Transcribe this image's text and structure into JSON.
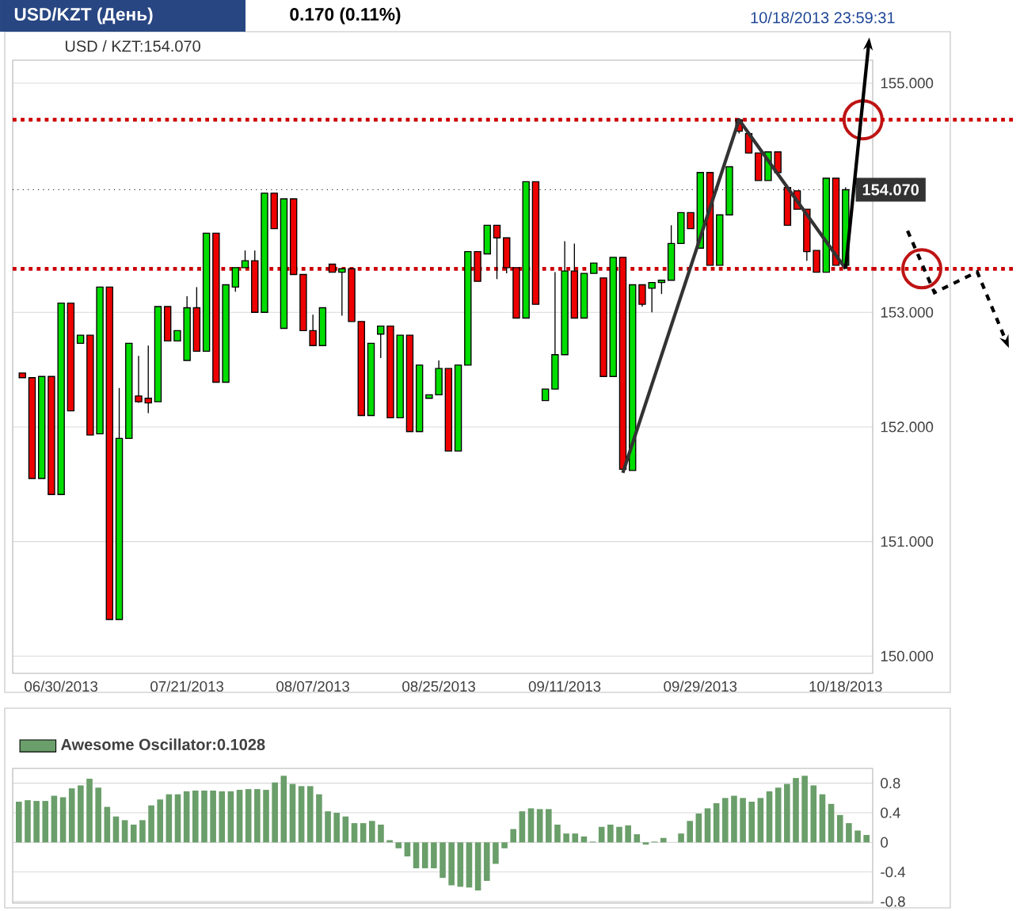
{
  "chart_data": [
    {
      "type": "candlestick",
      "title": "USD/KZT (День)",
      "subtitle": "0.170 (0.11%)",
      "annotations": [
        "10/18/2013 23:59:31",
        "USD / KZT:154.070"
      ],
      "categories": [
        null,
        null,
        null,
        null,
        "06/30/2013",
        null,
        null,
        null,
        null,
        null,
        null,
        null,
        null,
        null,
        null,
        null,
        null,
        "07/21/2013",
        null,
        null,
        null,
        null,
        null,
        null,
        null,
        null,
        null,
        null,
        null,
        null,
        "08/07/2013",
        null,
        null,
        null,
        null,
        null,
        null,
        null,
        null,
        null,
        null,
        null,
        null,
        "08/25/2013",
        null,
        null,
        null,
        null,
        null,
        null,
        null,
        null,
        null,
        null,
        null,
        null,
        "09/11/2013",
        null,
        null,
        null,
        null,
        null,
        null,
        null,
        null,
        null,
        null,
        null,
        null,
        null,
        "09/29/2013",
        null,
        null,
        null,
        null,
        null,
        null,
        null,
        null,
        null,
        null,
        null,
        null,
        null,
        null,
        "10/18/2013"
      ],
      "ohlc": [
        [
          152.47,
          152.47,
          152.43,
          152.43
        ],
        [
          152.43,
          152.43,
          151.55,
          151.55
        ],
        [
          151.55,
          152.44,
          151.55,
          152.44
        ],
        [
          152.44,
          152.44,
          151.41,
          151.41
        ],
        [
          151.41,
          153.08,
          151.41,
          153.08
        ],
        [
          153.08,
          153.08,
          152.14,
          152.14
        ],
        [
          152.73,
          152.8,
          152.73,
          152.8
        ],
        [
          152.8,
          152.8,
          151.93,
          151.93
        ],
        [
          151.94,
          153.22,
          151.94,
          153.22
        ],
        [
          153.22,
          153.22,
          150.32,
          150.32
        ],
        [
          150.32,
          152.34,
          150.32,
          151.9
        ],
        [
          151.9,
          152.73,
          151.9,
          152.73
        ],
        [
          152.27,
          152.62,
          152.21,
          152.22
        ],
        [
          152.25,
          152.71,
          152.12,
          152.21
        ],
        [
          152.22,
          153.05,
          152.22,
          153.05
        ],
        [
          153.05,
          153.05,
          152.75,
          152.75
        ],
        [
          152.75,
          152.84,
          152.75,
          152.84
        ],
        [
          152.58,
          153.14,
          152.58,
          153.04
        ],
        [
          153.04,
          153.22,
          152.66,
          152.66
        ],
        [
          152.66,
          153.69,
          152.66,
          153.69
        ],
        [
          153.69,
          153.69,
          152.39,
          152.39
        ],
        [
          152.39,
          153.24,
          152.39,
          153.24
        ],
        [
          153.22,
          153.39,
          153.18,
          153.39
        ],
        [
          153.39,
          153.54,
          153.39,
          153.45
        ],
        [
          153.45,
          153.54,
          153.0,
          153.0
        ],
        [
          153.0,
          154.04,
          153.0,
          154.04
        ],
        [
          154.04,
          154.04,
          153.73,
          153.73
        ],
        [
          152.86,
          153.99,
          152.86,
          153.99
        ],
        [
          153.99,
          153.99,
          153.33,
          153.33
        ],
        [
          153.33,
          153.33,
          152.84,
          152.84
        ],
        [
          152.84,
          152.98,
          152.71,
          152.71
        ],
        [
          152.71,
          153.04,
          152.71,
          153.04
        ],
        [
          153.42,
          153.42,
          153.35,
          153.35
        ],
        [
          153.35,
          153.38,
          152.97,
          153.38
        ],
        [
          153.38,
          153.38,
          152.92,
          152.92
        ],
        [
          152.92,
          152.92,
          152.1,
          152.1
        ],
        [
          152.1,
          152.73,
          152.1,
          152.73
        ],
        [
          152.81,
          152.88,
          152.6,
          152.88
        ],
        [
          152.88,
          152.88,
          152.08,
          152.08
        ],
        [
          152.08,
          152.8,
          152.08,
          152.8
        ],
        [
          152.8,
          152.8,
          151.96,
          151.96
        ],
        [
          151.96,
          152.54,
          151.96,
          152.54
        ],
        [
          152.25,
          152.28,
          152.25,
          152.28
        ],
        [
          152.28,
          152.58,
          152.28,
          152.51
        ],
        [
          152.51,
          152.51,
          151.79,
          151.79
        ],
        [
          151.79,
          152.54,
          151.79,
          152.54
        ],
        [
          152.54,
          153.53,
          152.54,
          153.53
        ],
        [
          153.53,
          153.53,
          153.27,
          153.27
        ],
        [
          153.51,
          153.76,
          153.51,
          153.76
        ],
        [
          153.76,
          153.76,
          153.29,
          153.65
        ],
        [
          153.65,
          153.65,
          153.34,
          153.39
        ],
        [
          153.39,
          153.39,
          152.95,
          152.95
        ],
        [
          152.95,
          154.14,
          152.95,
          154.14
        ],
        [
          154.14,
          154.14,
          153.07,
          153.07
        ],
        [
          152.23,
          152.33,
          152.23,
          152.33
        ],
        [
          152.33,
          153.35,
          152.33,
          152.63
        ],
        [
          152.63,
          153.62,
          152.63,
          153.36
        ],
        [
          153.36,
          153.6,
          152.95,
          152.95
        ],
        [
          152.95,
          153.34,
          152.95,
          153.34
        ],
        [
          153.34,
          153.43,
          153.34,
          153.43
        ],
        [
          153.3,
          153.3,
          152.44,
          152.44
        ],
        [
          152.44,
          153.48,
          152.44,
          153.48
        ],
        [
          153.48,
          153.48,
          151.63,
          151.63
        ],
        [
          151.62,
          153.24,
          151.62,
          153.24
        ],
        [
          153.24,
          153.24,
          153.05,
          153.07
        ],
        [
          153.21,
          153.26,
          153.0,
          153.26
        ],
        [
          153.26,
          153.28,
          153.16,
          153.28
        ],
        [
          153.28,
          153.76,
          153.28,
          153.6
        ],
        [
          153.6,
          153.87,
          153.6,
          153.87
        ],
        [
          153.87,
          153.87,
          153.73,
          153.73
        ],
        [
          153.56,
          154.22,
          153.56,
          154.22
        ],
        [
          154.22,
          154.22,
          153.41,
          153.41
        ],
        [
          153.41,
          153.85,
          153.41,
          153.85
        ],
        [
          153.85,
          154.27,
          153.85,
          154.27
        ],
        [
          154.68,
          154.68,
          154.56,
          154.58
        ],
        [
          154.56,
          154.56,
          154.39,
          154.39
        ],
        [
          154.39,
          154.39,
          154.15,
          154.15
        ],
        [
          154.15,
          154.4,
          154.15,
          154.4
        ],
        [
          154.4,
          154.4,
          154.22,
          154.22
        ],
        [
          154.09,
          154.09,
          153.76,
          153.76
        ],
        [
          154.06,
          154.06,
          153.9,
          153.9
        ],
        [
          153.9,
          153.9,
          153.45,
          153.53
        ],
        [
          153.54,
          153.54,
          153.35,
          153.35
        ],
        [
          153.35,
          154.17,
          153.35,
          154.17
        ],
        [
          154.17,
          154.17,
          153.41,
          153.41
        ],
        [
          153.41,
          154.09,
          153.41,
          154.07
        ]
      ],
      "colors": [
        "#ee0000",
        "#ee0000",
        "#00dd00",
        "#ee0000",
        "#00dd00",
        "#ee0000",
        "#00dd00",
        "#ee0000",
        "#00dd00",
        "#ee0000",
        "#00dd00",
        "#00dd00",
        "#ee0000",
        "#ee0000",
        "#00dd00",
        "#ee0000",
        "#00dd00",
        "#00dd00",
        "#ee0000",
        "#00dd00",
        "#ee0000",
        "#00dd00",
        "#00dd00",
        "#00dd00",
        "#ee0000",
        "#00dd00",
        "#ee0000",
        "#00dd00",
        "#ee0000",
        "#ee0000",
        "#ee0000",
        "#00dd00",
        "#ee0000",
        "#00dd00",
        "#ee0000",
        "#ee0000",
        "#00dd00",
        "#00dd00",
        "#ee0000",
        "#00dd00",
        "#ee0000",
        "#00dd00",
        "#00dd00",
        "#00dd00",
        "#ee0000",
        "#00dd00",
        "#00dd00",
        "#ee0000",
        "#00dd00",
        "#ee0000",
        "#ee0000",
        "#ee0000",
        "#00dd00",
        "#ee0000",
        "#00dd00",
        "#00dd00",
        "#00dd00",
        "#ee0000",
        "#00dd00",
        "#00dd00",
        "#ee0000",
        "#00dd00",
        "#ee0000",
        "#00dd00",
        "#ee0000",
        "#00dd00",
        "#00dd00",
        "#00dd00",
        "#00dd00",
        "#ee0000",
        "#00dd00",
        "#ee0000",
        "#00dd00",
        "#00dd00",
        "#ee0000",
        "#ee0000",
        "#ee0000",
        "#00dd00",
        "#ee0000",
        "#ee0000",
        "#ee0000",
        "#ee0000",
        "#ee0000",
        "#00dd00",
        "#ee0000",
        "#00dd00"
      ],
      "series": [
        {
          "type": "line",
          "color": "#333333",
          "values": [
            null,
            null,
            null,
            null,
            null,
            null,
            null,
            null,
            null,
            null,
            null,
            null,
            null,
            null,
            null,
            null,
            null,
            null,
            null,
            null,
            null,
            null,
            null,
            null,
            null,
            null,
            null,
            null,
            null,
            null,
            null,
            null,
            null,
            null,
            null,
            null,
            null,
            null,
            null,
            null,
            null,
            null,
            null,
            null,
            null,
            null,
            null,
            null,
            null,
            null,
            null,
            null,
            null,
            null,
            null,
            null,
            null,
            null,
            null,
            null,
            null,
            null,
            151.6,
            null,
            null,
            null,
            null,
            null,
            null,
            null,
            null,
            null,
            null,
            null,
            154.68,
            null,
            null,
            null,
            null,
            null,
            null,
            null,
            null,
            null,
            null,
            153.38
          ]
        }
      ],
      "ylim": [
        149.85,
        155.2
      ],
      "yticks": [
        {
          "value": 150,
          "label": "150.000"
        },
        {
          "value": 151,
          "label": "151.000"
        },
        {
          "value": 152,
          "label": "152.000"
        },
        {
          "value": 153,
          "label": "153.000"
        },
        {
          "value": 155,
          "label": "155.000"
        }
      ],
      "ref_lines": [
        {
          "axis": "y",
          "value": 154.07,
          "label": "154.070",
          "color": "#000000",
          "line_style": "dotted"
        },
        {
          "axis": "y",
          "value": 154.68,
          "label": null,
          "color": "#cc0000",
          "line_style": "dotted"
        },
        {
          "axis": "y",
          "value": 153.38,
          "label": null,
          "color": "#cc0000",
          "line_style": "dotted"
        }
      ],
      "grid": "y"
    },
    {
      "type": "bar",
      "legend": "top left",
      "tick_labels": "y",
      "grid": "y",
      "categories": [
        null,
        null,
        null,
        null,
        null,
        null,
        null,
        null,
        null,
        null,
        null,
        null,
        null,
        null,
        null,
        null,
        null,
        null,
        null,
        null,
        null,
        null,
        null,
        null,
        null,
        null,
        null,
        null,
        null,
        null,
        null,
        null,
        null,
        null,
        null,
        null,
        null,
        null,
        null,
        null,
        null,
        null,
        null,
        null,
        null,
        null,
        null,
        null,
        null,
        null,
        null,
        null,
        null,
        null,
        null,
        null,
        null,
        null,
        null,
        null,
        null,
        null,
        null,
        null,
        null,
        null,
        null,
        null,
        null,
        null,
        null,
        null,
        null,
        null,
        null,
        null,
        null,
        null,
        null,
        null,
        null,
        null,
        null,
        null,
        null,
        null,
        null,
        null,
        null,
        null,
        null,
        null,
        null,
        null,
        null,
        null,
        null
      ],
      "series": [
        {
          "name": "Awesome Oscillator:0.1028",
          "color": "#6a9e6a",
          "values": [
            0.55,
            0.57,
            0.56,
            0.56,
            0.63,
            0.61,
            0.73,
            0.77,
            0.86,
            0.74,
            0.48,
            0.35,
            0.3,
            0.24,
            0.3,
            0.5,
            0.58,
            0.65,
            0.65,
            0.69,
            0.7,
            0.7,
            0.7,
            0.69,
            0.69,
            0.71,
            0.72,
            0.72,
            0.71,
            0.81,
            0.9,
            0.79,
            0.76,
            0.76,
            0.65,
            0.42,
            0.4,
            0.35,
            0.26,
            0.26,
            0.29,
            0.24,
            0.03,
            -0.08,
            -0.19,
            -0.35,
            -0.35,
            -0.35,
            -0.48,
            -0.58,
            -0.6,
            -0.61,
            -0.65,
            -0.52,
            -0.29,
            -0.08,
            0.18,
            0.42,
            0.46,
            0.45,
            0.45,
            0.24,
            0.12,
            0.12,
            0.08,
            0.01,
            0.21,
            0.24,
            0.21,
            0.23,
            0.11,
            -0.03,
            0.01,
            0.06,
            0,
            0.12,
            0.29,
            0.39,
            0.46,
            0.53,
            0.6,
            0.63,
            0.6,
            0.55,
            0.6,
            0.69,
            0.74,
            0.79,
            0.87,
            0.9,
            0.77,
            0.65,
            0.52,
            0.37,
            0.26,
            0.16,
            0.1
          ]
        }
      ],
      "ylim": [
        -0.82,
        1.0
      ],
      "yticks": [
        0.8,
        0.4,
        0,
        -0.4,
        -0.8
      ]
    }
  ]
}
